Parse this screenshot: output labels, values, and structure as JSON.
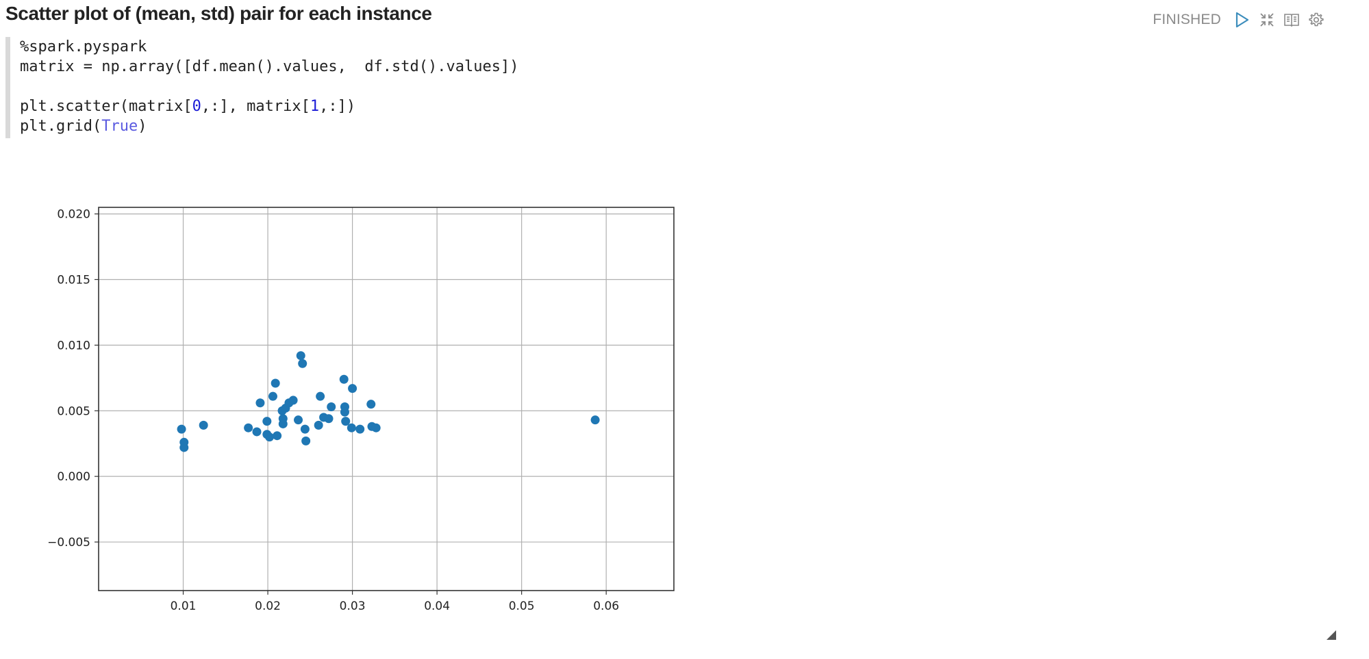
{
  "paragraph": {
    "title": "Scatter plot of (mean, std) pair for each instance",
    "status": "FINISHED",
    "icons": {
      "run": "play-icon",
      "collapse": "collapse-icon",
      "book": "book-icon",
      "settings": "gear-icon",
      "resize": "resize-handle-icon"
    }
  },
  "editor": {
    "lines": [
      "%spark.pyspark",
      "matrix = np.array([df.mean().values,  df.std().values])",
      "",
      "plt.scatter(matrix[0,:], matrix[1,:])",
      "plt.grid(True)"
    ],
    "tokens": {
      "line3_a": "plt.scatter(matrix[",
      "line3_n1": "0",
      "line3_b": ",:], matrix[",
      "line3_n2": "1",
      "line3_c": ",:])",
      "line4_a": "plt.grid(",
      "line4_kw": "True",
      "line4_b": ")"
    }
  },
  "colors": {
    "marker": "#1f77b4",
    "grid": "#b0b0b0",
    "axes": "#333333",
    "status": "#8a8a8a",
    "accent": "#3c8dbc"
  },
  "chart_data": {
    "type": "scatter",
    "title": "",
    "xlabel": "",
    "ylabel": "",
    "grid": true,
    "xlim": [
      0.0,
      0.068
    ],
    "ylim": [
      -0.0087,
      0.0205
    ],
    "xticks": [
      0.01,
      0.02,
      0.03,
      0.04,
      0.05,
      0.06
    ],
    "xtick_labels": [
      "0.01",
      "0.02",
      "0.03",
      "0.04",
      "0.05",
      "0.06"
    ],
    "yticks": [
      0.02,
      0.015,
      0.01,
      0.005,
      0.0,
      -0.005
    ],
    "ytick_labels": [
      "0.020",
      "0.015",
      "0.010",
      "0.005",
      "0.000",
      "−0.005"
    ],
    "points": [
      [
        0.0098,
        0.0036
      ],
      [
        0.0101,
        0.0026
      ],
      [
        0.0101,
        0.0022
      ],
      [
        0.0124,
        0.0039
      ],
      [
        0.0177,
        0.0037
      ],
      [
        0.0187,
        0.0034
      ],
      [
        0.0191,
        0.0056
      ],
      [
        0.0199,
        0.0042
      ],
      [
        0.0199,
        0.0032
      ],
      [
        0.0202,
        0.003
      ],
      [
        0.0206,
        0.0061
      ],
      [
        0.0209,
        0.0071
      ],
      [
        0.0211,
        0.0031
      ],
      [
        0.0217,
        0.005
      ],
      [
        0.0218,
        0.0044
      ],
      [
        0.0218,
        0.004
      ],
      [
        0.0221,
        0.0052
      ],
      [
        0.0225,
        0.0056
      ],
      [
        0.023,
        0.0058
      ],
      [
        0.0236,
        0.0043
      ],
      [
        0.0239,
        0.0092
      ],
      [
        0.0241,
        0.0086
      ],
      [
        0.0244,
        0.0036
      ],
      [
        0.0245,
        0.0027
      ],
      [
        0.026,
        0.0039
      ],
      [
        0.0262,
        0.0061
      ],
      [
        0.0266,
        0.0045
      ],
      [
        0.0272,
        0.0044
      ],
      [
        0.0275,
        0.0053
      ],
      [
        0.029,
        0.0074
      ],
      [
        0.0291,
        0.0053
      ],
      [
        0.0291,
        0.0049
      ],
      [
        0.0292,
        0.0042
      ],
      [
        0.0299,
        0.0037
      ],
      [
        0.03,
        0.0067
      ],
      [
        0.0309,
        0.0036
      ],
      [
        0.0322,
        0.0055
      ],
      [
        0.0323,
        0.0038
      ],
      [
        0.0328,
        0.0037
      ],
      [
        0.0587,
        0.0043
      ]
    ]
  }
}
